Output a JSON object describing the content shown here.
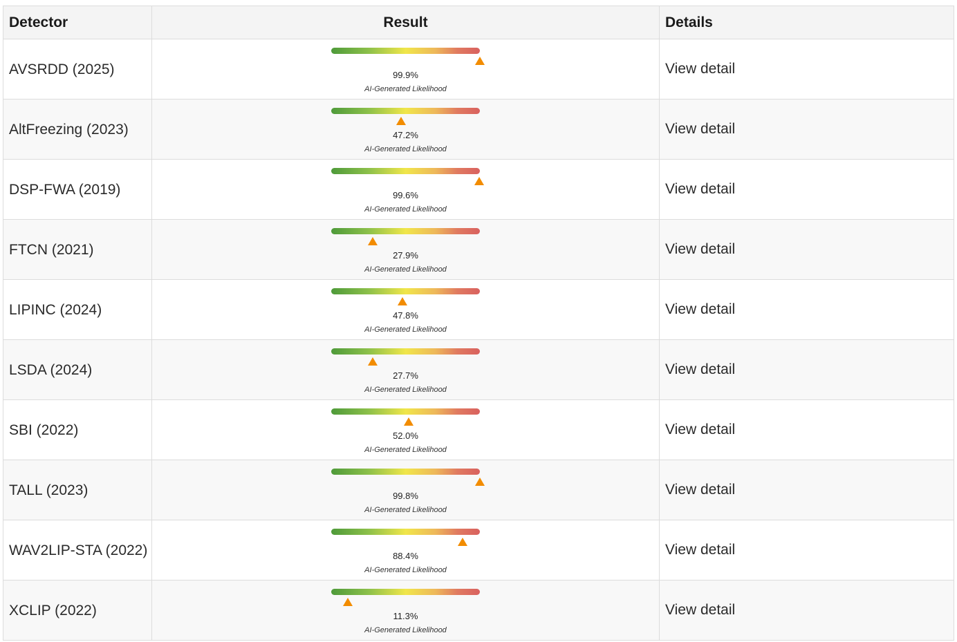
{
  "table": {
    "headers": {
      "detector": "Detector",
      "result": "Result",
      "details": "Details"
    },
    "caption": "AI-Generated Likelihood",
    "details_link": "View detail",
    "colors": {
      "marker": "#f28c00",
      "gauge_low": "#4e9a3a",
      "gauge_mid": "#f0e64a",
      "gauge_high": "#d9615f"
    },
    "rows": [
      {
        "detector": "AVSRDD (2025)",
        "percent": "99.9%",
        "likelihood": 0.999
      },
      {
        "detector": "AltFreezing (2023)",
        "percent": "47.2%",
        "likelihood": 0.472
      },
      {
        "detector": "DSP-FWA (2019)",
        "percent": "99.6%",
        "likelihood": 0.996
      },
      {
        "detector": "FTCN (2021)",
        "percent": "27.9%",
        "likelihood": 0.279
      },
      {
        "detector": "LIPINC (2024)",
        "percent": "47.8%",
        "likelihood": 0.478
      },
      {
        "detector": "LSDA (2024)",
        "percent": "27.7%",
        "likelihood": 0.277
      },
      {
        "detector": "SBI (2022)",
        "percent": "52.0%",
        "likelihood": 0.52
      },
      {
        "detector": "TALL (2023)",
        "percent": "99.8%",
        "likelihood": 0.998
      },
      {
        "detector": "WAV2LIP-STA (2022)",
        "percent": "88.4%",
        "likelihood": 0.884
      },
      {
        "detector": "XCLIP (2022)",
        "percent": "11.3%",
        "likelihood": 0.113
      }
    ]
  }
}
